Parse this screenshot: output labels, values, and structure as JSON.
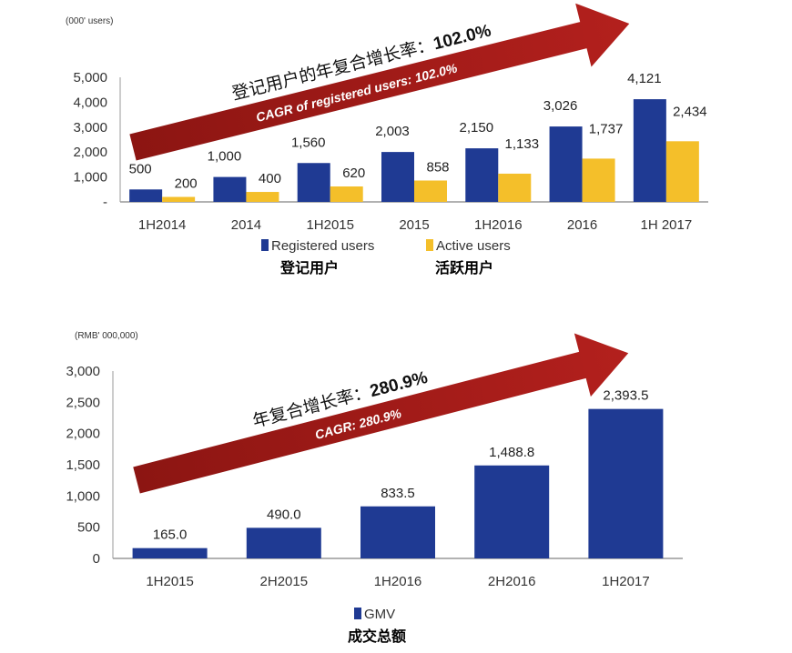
{
  "chart_data": [
    {
      "type": "bar",
      "unit_label": "(000' users)",
      "categories": [
        "1H2014",
        "2014",
        "1H2015",
        "2015",
        "1H2016",
        "2016",
        "1H 2017"
      ],
      "series": [
        {
          "name": "Registered users",
          "name_cn": "登记用户",
          "color": "#1f3a93",
          "values": [
            500,
            1000,
            1560,
            2003,
            2150,
            3026,
            4121
          ],
          "labels": [
            "500",
            "1,000",
            "1,560",
            "2,003",
            "2,150",
            "3,026",
            "4,121"
          ]
        },
        {
          "name": "Active users",
          "name_cn": "活跃用户",
          "color": "#f4bf2a",
          "values": [
            200,
            400,
            620,
            858,
            1133,
            1737,
            2434
          ],
          "labels": [
            "200",
            "400",
            "620",
            "858",
            "1,133",
            "1,737",
            "2,434"
          ]
        }
      ],
      "yticks": [
        "-",
        "1,000",
        "2,000",
        "3,000",
        "4,000",
        "5,000"
      ],
      "ylim": [
        0,
        5000
      ],
      "grid": false,
      "legend": "bottom",
      "annotation": {
        "cn_text": "登记用户的年复合增长率：",
        "cn_value": "102.0%",
        "en_text": "CAGR of registered users: 102.0%",
        "arrow_color": "#b3201d"
      }
    },
    {
      "type": "bar",
      "unit_label": "(RMB' 000,000)",
      "categories": [
        "1H2015",
        "2H2015",
        "1H2016",
        "2H2016",
        "1H2017"
      ],
      "series": [
        {
          "name": "GMV",
          "name_cn": "成交总额",
          "color": "#1f3a93",
          "values": [
            165.0,
            490.0,
            833.5,
            1488.8,
            2393.5
          ],
          "labels": [
            "165.0",
            "490.0",
            "833.5",
            "1,488.8",
            "2,393.5"
          ]
        }
      ],
      "yticks": [
        "0",
        "500",
        "1,000",
        "1,500",
        "2,000",
        "2,500",
        "3,000"
      ],
      "ylim": [
        0,
        3000
      ],
      "grid": false,
      "legend": "bottom",
      "annotation": {
        "cn_text": "年复合增长率：",
        "cn_value": "280.9%",
        "en_text": "CAGR: 280.9%",
        "arrow_color": "#b3201d"
      }
    }
  ]
}
